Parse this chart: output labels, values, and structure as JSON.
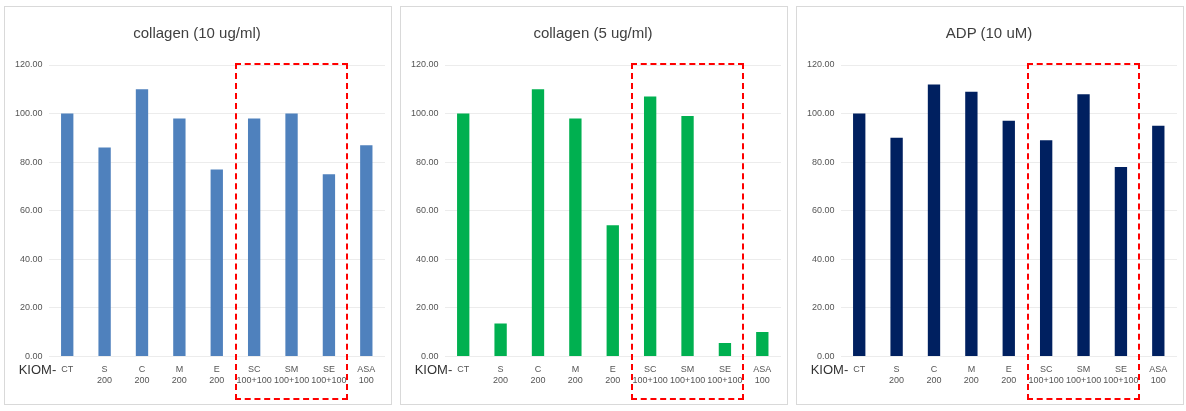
{
  "chart_data": [
    {
      "type": "bar",
      "title": "collagen (10 ug/ml)",
      "xlabel": "KIOM-",
      "categories": [
        "CT",
        "S\n200",
        "C\n200",
        "M\n200",
        "E\n200",
        "SC\n100+100",
        "SM\n100+100",
        "SE\n100+100",
        "ASA\n100"
      ],
      "values": [
        100,
        86,
        110,
        98,
        77,
        98,
        100,
        75,
        87
      ],
      "color": "#4f81bd",
      "ylim": [
        0,
        120
      ],
      "yticks": [
        {
          "value": 0,
          "label": "0.00"
        },
        {
          "value": 20,
          "label": "20.00"
        },
        {
          "value": 40,
          "label": "40.00"
        },
        {
          "value": 60,
          "label": "60.00"
        },
        {
          "value": 80,
          "label": "80.00"
        },
        {
          "value": 100,
          "label": "100.00"
        },
        {
          "value": 120,
          "label": "120.00"
        }
      ],
      "grid": "y",
      "legend": false
    },
    {
      "type": "bar",
      "title": "collagen (5 ug/ml)",
      "xlabel": "KIOM-",
      "categories": [
        "CT",
        "S\n200",
        "C\n200",
        "M\n200",
        "E\n200",
        "SC\n100+100",
        "SM\n100+100",
        "SE\n100+100",
        "ASA\n100"
      ],
      "values": [
        100,
        13.5,
        110,
        98,
        54,
        107,
        99,
        5.5,
        10
      ],
      "color": "#00b050",
      "ylim": [
        0,
        120
      ],
      "yticks": [
        {
          "value": 0,
          "label": "0.00"
        },
        {
          "value": 20,
          "label": "20.00"
        },
        {
          "value": 40,
          "label": "40.00"
        },
        {
          "value": 60,
          "label": "60.00"
        },
        {
          "value": 80,
          "label": "80.00"
        },
        {
          "value": 100,
          "label": "100.00"
        },
        {
          "value": 120,
          "label": "120.00"
        }
      ],
      "grid": "y",
      "legend": false
    },
    {
      "type": "bar",
      "title": "ADP (10 uM)",
      "xlabel": "KIOM-",
      "categories": [
        "CT",
        "S\n200",
        "C\n200",
        "M\n200",
        "E\n200",
        "SC\n100+100",
        "SM\n100+100",
        "SE\n100+100",
        "ASA\n100"
      ],
      "values": [
        100,
        90,
        112,
        109,
        97,
        89,
        108,
        78,
        95
      ],
      "color": "#002060",
      "ylim": [
        0,
        120
      ],
      "yticks": [
        {
          "value": 0,
          "label": "0.00"
        },
        {
          "value": 20,
          "label": "20.00"
        },
        {
          "value": 40,
          "label": "40.00"
        },
        {
          "value": 60,
          "label": "60.00"
        },
        {
          "value": 80,
          "label": "80.00"
        },
        {
          "value": 100,
          "label": "100.00"
        },
        {
          "value": 120,
          "label": "120.00"
        }
      ],
      "grid": "y",
      "legend": false
    }
  ]
}
